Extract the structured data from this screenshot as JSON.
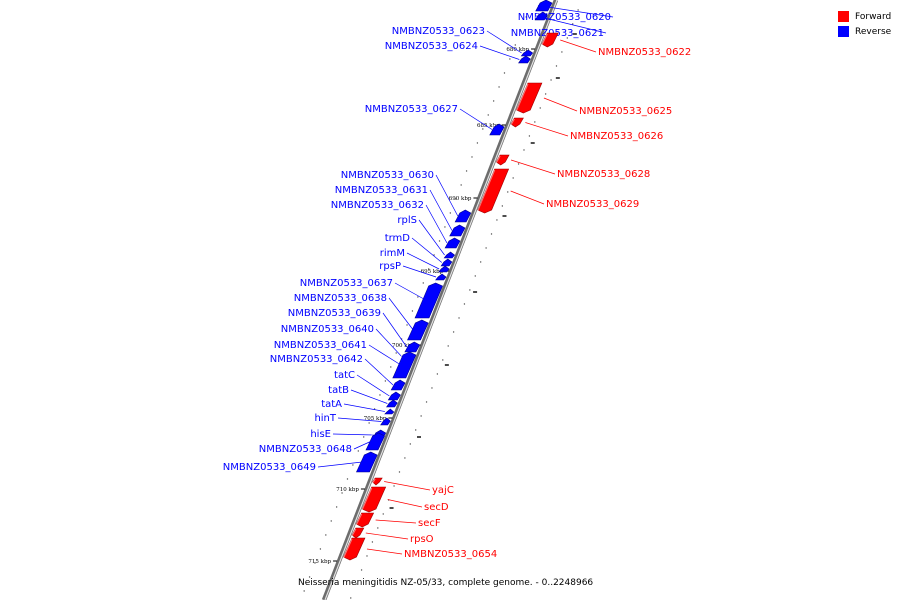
{
  "caption": "Neisseria meningitidis NZ-05/33, complete genome. - 0..2248966",
  "legend": [
    {
      "label": "Forward",
      "color": "#ff0000"
    },
    {
      "label": "Reverse",
      "color": "#0000ff"
    }
  ],
  "colors": {
    "forward": "#ff0000",
    "reverse": "#0000ff",
    "backbone": "#888888"
  },
  "scale_ticks": [
    "680 kbp",
    "685 kbp",
    "690 kbp",
    "695 kbp",
    "700 kbp",
    "705 kbp",
    "710 kbp",
    "715 kbp"
  ],
  "genes": [
    {
      "name": "NMBNZ0533_0620",
      "strand": "reverse"
    },
    {
      "name": "NMBNZ0533_0621",
      "strand": "reverse"
    },
    {
      "name": "NMBNZ0533_0622",
      "strand": "forward"
    },
    {
      "name": "NMBNZ0533_0623",
      "strand": "reverse"
    },
    {
      "name": "NMBNZ0533_0624",
      "strand": "reverse"
    },
    {
      "name": "NMBNZ0533_0625",
      "strand": "forward"
    },
    {
      "name": "NMBNZ0533_0626",
      "strand": "forward"
    },
    {
      "name": "NMBNZ0533_0627",
      "strand": "reverse"
    },
    {
      "name": "NMBNZ0533_0628",
      "strand": "forward"
    },
    {
      "name": "NMBNZ0533_0629",
      "strand": "forward"
    },
    {
      "name": "NMBNZ0533_0630",
      "strand": "reverse"
    },
    {
      "name": "NMBNZ0533_0631",
      "strand": "reverse"
    },
    {
      "name": "NMBNZ0533_0632",
      "strand": "reverse"
    },
    {
      "name": "rplS",
      "strand": "reverse"
    },
    {
      "name": "trmD",
      "strand": "reverse"
    },
    {
      "name": "rimM",
      "strand": "reverse"
    },
    {
      "name": "rpsP",
      "strand": "reverse"
    },
    {
      "name": "NMBNZ0533_0637",
      "strand": "reverse"
    },
    {
      "name": "NMBNZ0533_0638",
      "strand": "reverse"
    },
    {
      "name": "NMBNZ0533_0639",
      "strand": "reverse"
    },
    {
      "name": "NMBNZ0533_0640",
      "strand": "reverse"
    },
    {
      "name": "NMBNZ0533_0641",
      "strand": "reverse"
    },
    {
      "name": "NMBNZ0533_0642",
      "strand": "reverse"
    },
    {
      "name": "tatC",
      "strand": "reverse"
    },
    {
      "name": "tatB",
      "strand": "reverse"
    },
    {
      "name": "tatA",
      "strand": "reverse"
    },
    {
      "name": "hinT",
      "strand": "reverse"
    },
    {
      "name": "hisE",
      "strand": "reverse"
    },
    {
      "name": "NMBNZ0533_0648",
      "strand": "reverse"
    },
    {
      "name": "NMBNZ0533_0649",
      "strand": "reverse"
    },
    {
      "name": "yajC",
      "strand": "forward"
    },
    {
      "name": "secD",
      "strand": "forward"
    },
    {
      "name": "secF",
      "strand": "forward"
    },
    {
      "name": "rpsO",
      "strand": "forward"
    },
    {
      "name": "NMBNZ0533_0654",
      "strand": "forward"
    }
  ]
}
